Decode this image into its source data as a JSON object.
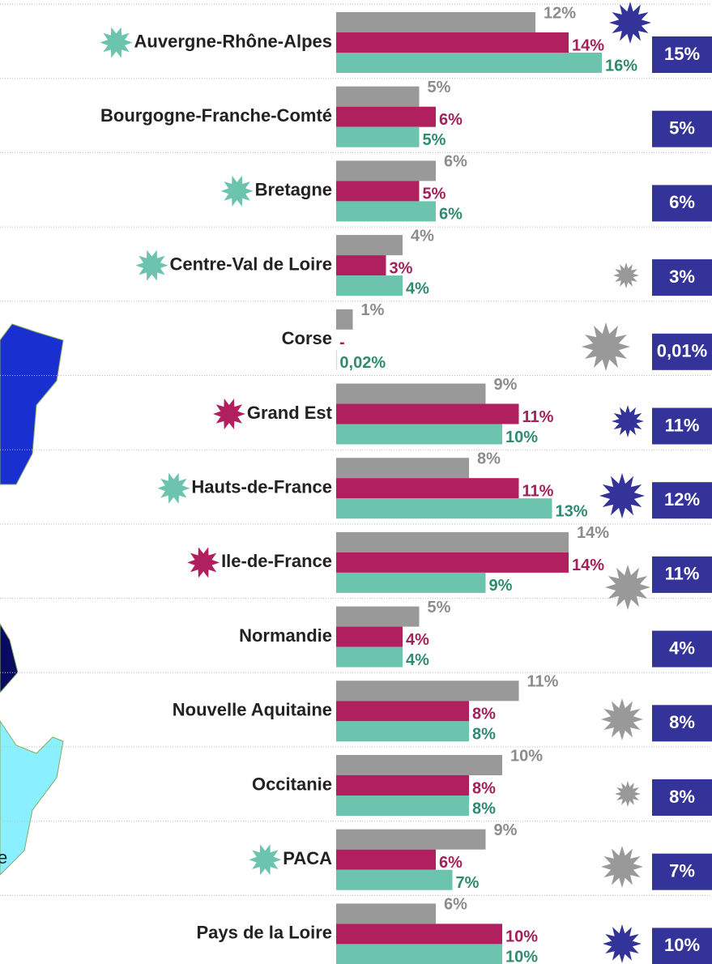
{
  "chart_data": {
    "type": "bar",
    "categories": [
      "Auvergne-Rhône-Alpes",
      "Bourgogne-Franche-Comté",
      "Bretagne",
      "Centre-Val de Loire",
      "Corse",
      "Grand Est",
      "Hauts-de-France",
      "Ile-de-France",
      "Normandie",
      "Nouvelle Aquitaine",
      "Occitanie",
      "PACA",
      "Pays de la Loire"
    ],
    "xlim": [
      0,
      16
    ],
    "series": [
      {
        "color": "#999999",
        "label_color": "#8c8c8c",
        "values": [
          12,
          5,
          6,
          4,
          1,
          9,
          8,
          14,
          5,
          11,
          10,
          9,
          6
        ],
        "value_labels": [
          "12%",
          "5%",
          "6%",
          "4%",
          "1%",
          "9%",
          "8%",
          "14%",
          "5%",
          "11%",
          "10%",
          "9%",
          "6%"
        ]
      },
      {
        "color": "#b01f5e",
        "label_color": "#a3205a",
        "values": [
          14,
          6,
          5,
          3,
          null,
          11,
          11,
          14,
          4,
          8,
          8,
          6,
          10
        ],
        "value_labels": [
          "14%",
          "6%",
          "5%",
          "3%",
          "-",
          "11%",
          "11%",
          "14%",
          "4%",
          "8%",
          "8%",
          "6%",
          "10%"
        ]
      },
      {
        "color": "#6cc3ae",
        "label_color": "#2e8b6e",
        "values": [
          16,
          5,
          6,
          4,
          0.02,
          10,
          13,
          9,
          4,
          8,
          8,
          7,
          10
        ],
        "value_labels": [
          "16%",
          "5%",
          "6%",
          "4%",
          "0,02%",
          "10%",
          "13%",
          "9%",
          "4%",
          "8%",
          "8%",
          "7%",
          "10%"
        ]
      }
    ],
    "totals": {
      "color": "#33339a",
      "values": [
        15,
        5,
        6,
        3,
        0.01,
        11,
        12,
        11,
        4,
        8,
        8,
        7,
        10
      ],
      "value_labels": [
        "15%",
        "5%",
        "6%",
        "3%",
        "0,01%",
        "11%",
        "12%",
        "11%",
        "4%",
        "8%",
        "8%",
        "7%",
        "10%"
      ]
    },
    "map_label": "e"
  }
}
